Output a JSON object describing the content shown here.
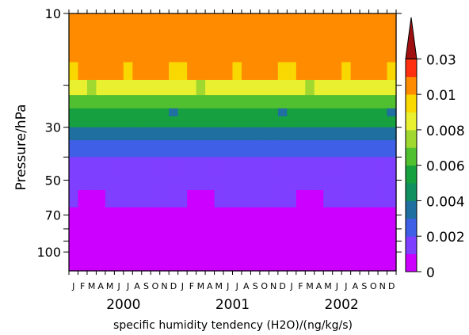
{
  "chart_data": {
    "type": "heatmap",
    "xlabel": "specific humidity tendency (H2O)/(ng/kg/s)",
    "ylabel": "Pressure/hPa",
    "y_scale": "log",
    "ylim": [
      120,
      10
    ],
    "y_tick_labels": [
      {
        "value": 10,
        "label": "10"
      },
      {
        "value": 20,
        "label": ""
      },
      {
        "value": 30,
        "label": "30"
      },
      {
        "value": 40,
        "label": ""
      },
      {
        "value": 50,
        "label": "50"
      },
      {
        "value": 70,
        "label": "70"
      },
      {
        "value": 80,
        "label": ""
      },
      {
        "value": 90,
        "label": ""
      },
      {
        "value": 100,
        "label": "100"
      }
    ],
    "month_labels": [
      "J",
      "F",
      "M",
      "A",
      "M",
      "J",
      "J",
      "A",
      "S",
      "O",
      "N",
      "D",
      "J",
      "F",
      "M",
      "A",
      "M",
      "J",
      "J",
      "A",
      "S",
      "O",
      "N",
      "D",
      "J",
      "F",
      "M",
      "A",
      "M",
      "J",
      "J",
      "A",
      "S",
      "O",
      "N",
      "D"
    ],
    "year_labels": [
      "2000",
      "2001",
      "2002"
    ],
    "colorbar": {
      "levels": [
        0,
        0.001,
        0.002,
        0.003,
        0.004,
        0.005,
        0.006,
        0.007,
        0.008,
        0.009,
        0.01,
        0.02,
        0.03
      ],
      "tick_labels": [
        {
          "value": 0,
          "label": "0"
        },
        {
          "value": 0.002,
          "label": "0.002"
        },
        {
          "value": 0.004,
          "label": "0.004"
        },
        {
          "value": 0.006,
          "label": "0.006"
        },
        {
          "value": 0.008,
          "label": "0.008"
        },
        {
          "value": 0.01,
          "label": "0.01"
        },
        {
          "value": 0.03,
          "label": "0.03"
        }
      ],
      "colors": [
        "#cc00ff",
        "#7f3fff",
        "#3f5fe6",
        "#1f6fa0",
        "#109060",
        "#16a040",
        "#50bf30",
        "#a0d830",
        "#e8f030",
        "#f8d800",
        "#ff8c00",
        "#ff3010",
        "#a01010"
      ]
    },
    "y_levels": [
      10,
      16,
      19,
      22,
      25,
      27,
      30,
      34,
      40,
      48,
      55,
      65,
      80,
      100,
      120
    ],
    "values": [
      [
        0.012,
        0.012,
        0.012,
        0.012,
        0.012,
        0.012,
        0.012,
        0.012,
        0.012,
        0.012,
        0.012,
        0.012,
        0.012,
        0.012,
        0.012,
        0.012,
        0.012,
        0.012,
        0.012,
        0.012,
        0.012,
        0.012,
        0.012,
        0.012,
        0.012,
        0.012,
        0.012,
        0.012,
        0.012,
        0.012,
        0.012,
        0.012,
        0.012,
        0.012,
        0.012,
        0.012
      ],
      [
        0.0095,
        0.012,
        0.012,
        0.012,
        0.012,
        0.012,
        0.0095,
        0.012,
        0.012,
        0.012,
        0.012,
        0.0095,
        0.0095,
        0.012,
        0.012,
        0.012,
        0.012,
        0.012,
        0.0095,
        0.012,
        0.012,
        0.012,
        0.012,
        0.0095,
        0.0095,
        0.012,
        0.012,
        0.012,
        0.012,
        0.012,
        0.0095,
        0.012,
        0.012,
        0.012,
        0.012,
        0.0095
      ],
      [
        0.0085,
        0.0085,
        0.0075,
        0.0085,
        0.0085,
        0.0085,
        0.0085,
        0.0085,
        0.0085,
        0.0085,
        0.0085,
        0.0085,
        0.0085,
        0.0085,
        0.0075,
        0.0085,
        0.0085,
        0.0085,
        0.0085,
        0.0085,
        0.0085,
        0.0085,
        0.0085,
        0.0085,
        0.0085,
        0.0085,
        0.0075,
        0.0085,
        0.0085,
        0.0085,
        0.0085,
        0.0085,
        0.0085,
        0.0085,
        0.0085,
        0.0085
      ],
      [
        0.0065,
        0.0065,
        0.0065,
        0.0065,
        0.0065,
        0.0065,
        0.0065,
        0.0065,
        0.0065,
        0.0065,
        0.0065,
        0.0065,
        0.0065,
        0.0065,
        0.0065,
        0.0065,
        0.0065,
        0.0065,
        0.0065,
        0.0065,
        0.0065,
        0.0065,
        0.0065,
        0.0065,
        0.0065,
        0.0065,
        0.0065,
        0.0065,
        0.0065,
        0.0065,
        0.0065,
        0.0065,
        0.0065,
        0.0065,
        0.0065,
        0.0065
      ],
      [
        0.0055,
        0.0055,
        0.0055,
        0.0055,
        0.0055,
        0.0055,
        0.0055,
        0.0055,
        0.0055,
        0.0055,
        0.0055,
        0.0035,
        0.0055,
        0.0055,
        0.0055,
        0.0055,
        0.0055,
        0.0055,
        0.0055,
        0.0055,
        0.0055,
        0.0055,
        0.0055,
        0.0035,
        0.0055,
        0.0055,
        0.0055,
        0.0055,
        0.0055,
        0.0055,
        0.0055,
        0.0055,
        0.0055,
        0.0055,
        0.0055,
        0.0035
      ],
      [
        0.0055,
        0.0055,
        0.0055,
        0.0055,
        0.0055,
        0.0055,
        0.0055,
        0.0055,
        0.0055,
        0.0055,
        0.0055,
        0.0055,
        0.0055,
        0.0055,
        0.0055,
        0.0055,
        0.0055,
        0.0055,
        0.0055,
        0.0055,
        0.0055,
        0.0055,
        0.0055,
        0.0055,
        0.0055,
        0.0055,
        0.0055,
        0.0055,
        0.0055,
        0.0055,
        0.0055,
        0.0055,
        0.0055,
        0.0055,
        0.0055,
        0.0055
      ],
      [
        0.0035,
        0.0035,
        0.0035,
        0.0035,
        0.0035,
        0.0035,
        0.0035,
        0.0035,
        0.0035,
        0.0035,
        0.0035,
        0.0035,
        0.0035,
        0.0035,
        0.0035,
        0.0035,
        0.0035,
        0.0035,
        0.0035,
        0.0035,
        0.0035,
        0.0035,
        0.0035,
        0.0035,
        0.0035,
        0.0035,
        0.0035,
        0.0035,
        0.0035,
        0.0035,
        0.0035,
        0.0035,
        0.0035,
        0.0035,
        0.0035,
        0.0035
      ],
      [
        0.0025,
        0.0025,
        0.0025,
        0.0025,
        0.0025,
        0.0025,
        0.0025,
        0.0025,
        0.0025,
        0.0025,
        0.0025,
        0.0025,
        0.0025,
        0.0025,
        0.0025,
        0.0025,
        0.0025,
        0.0025,
        0.0025,
        0.0025,
        0.0025,
        0.0025,
        0.0025,
        0.0025,
        0.0025,
        0.0025,
        0.0025,
        0.0025,
        0.0025,
        0.0025,
        0.0025,
        0.0025,
        0.0025,
        0.0025,
        0.0025,
        0.0025
      ],
      [
        0.0015,
        0.0015,
        0.0015,
        0.0015,
        0.0015,
        0.0015,
        0.0015,
        0.0015,
        0.0015,
        0.0015,
        0.0015,
        0.0015,
        0.0015,
        0.0015,
        0.0015,
        0.0015,
        0.0015,
        0.0015,
        0.0015,
        0.0015,
        0.0015,
        0.0015,
        0.0015,
        0.0015,
        0.0015,
        0.0015,
        0.0015,
        0.0015,
        0.0015,
        0.0015,
        0.0015,
        0.0015,
        0.0015,
        0.0015,
        0.0015,
        0.0015
      ],
      [
        0.0015,
        0.0015,
        0.0015,
        0.0015,
        0.0015,
        0.0015,
        0.0015,
        0.0015,
        0.0015,
        0.0015,
        0.0015,
        0.0015,
        0.0015,
        0.0015,
        0.0015,
        0.0015,
        0.0015,
        0.0015,
        0.0015,
        0.0015,
        0.0015,
        0.0015,
        0.0015,
        0.0015,
        0.0015,
        0.0015,
        0.0015,
        0.0015,
        0.0015,
        0.0015,
        0.0015,
        0.0015,
        0.0015,
        0.0015,
        0.0015,
        0.0015
      ],
      [
        0.0015,
        0.0005,
        0.0005,
        0.0005,
        0.0015,
        0.0015,
        0.0015,
        0.0015,
        0.0015,
        0.0015,
        0.0015,
        0.0015,
        0.0015,
        0.0005,
        0.0005,
        0.0005,
        0.0015,
        0.0015,
        0.0015,
        0.0015,
        0.0015,
        0.0015,
        0.0015,
        0.0015,
        0.0015,
        0.0005,
        0.0005,
        0.0005,
        0.0015,
        0.0015,
        0.0015,
        0.0015,
        0.0015,
        0.0015,
        0.0015,
        0.0015
      ],
      [
        0.0005,
        0.0005,
        0.0005,
        0.0005,
        0.0005,
        0.0005,
        0.0005,
        0.0005,
        0.0005,
        0.0005,
        0.0005,
        0.0005,
        0.0005,
        0.0005,
        0.0005,
        0.0005,
        0.0005,
        0.0005,
        0.0005,
        0.0005,
        0.0005,
        0.0005,
        0.0005,
        0.0005,
        0.0005,
        0.0005,
        0.0005,
        0.0005,
        0.0005,
        0.0005,
        0.0005,
        0.0005,
        0.0005,
        0.0005,
        0.0005,
        0.0005
      ],
      [
        0.0005,
        0.0005,
        0.0005,
        0.0005,
        0.0005,
        0.0005,
        0.0005,
        0.0005,
        0.0005,
        0.0005,
        0.0005,
        0.0005,
        0.0005,
        0.0005,
        0.0005,
        0.0005,
        0.0005,
        0.0005,
        0.0005,
        0.0005,
        0.0005,
        0.0005,
        0.0005,
        0.0005,
        0.0005,
        0.0005,
        0.0005,
        0.0005,
        0.0005,
        0.0005,
        0.0005,
        0.0005,
        0.0005,
        0.0005,
        0.0005,
        0.0005
      ],
      [
        0.0005,
        0.0005,
        0.0005,
        0.0005,
        0.0005,
        0.0005,
        0.0005,
        0.0005,
        0.0005,
        0.0005,
        0.0005,
        0.0005,
        0.0005,
        0.0005,
        0.0005,
        0.0005,
        0.0005,
        0.0005,
        0.0005,
        0.0005,
        0.0005,
        0.0005,
        0.0005,
        0.0005,
        0.0005,
        0.0005,
        0.0005,
        0.0005,
        0.0005,
        0.0005,
        0.0005,
        0.0005,
        0.0005,
        0.0005,
        0.0005,
        0.0005
      ]
    ]
  }
}
